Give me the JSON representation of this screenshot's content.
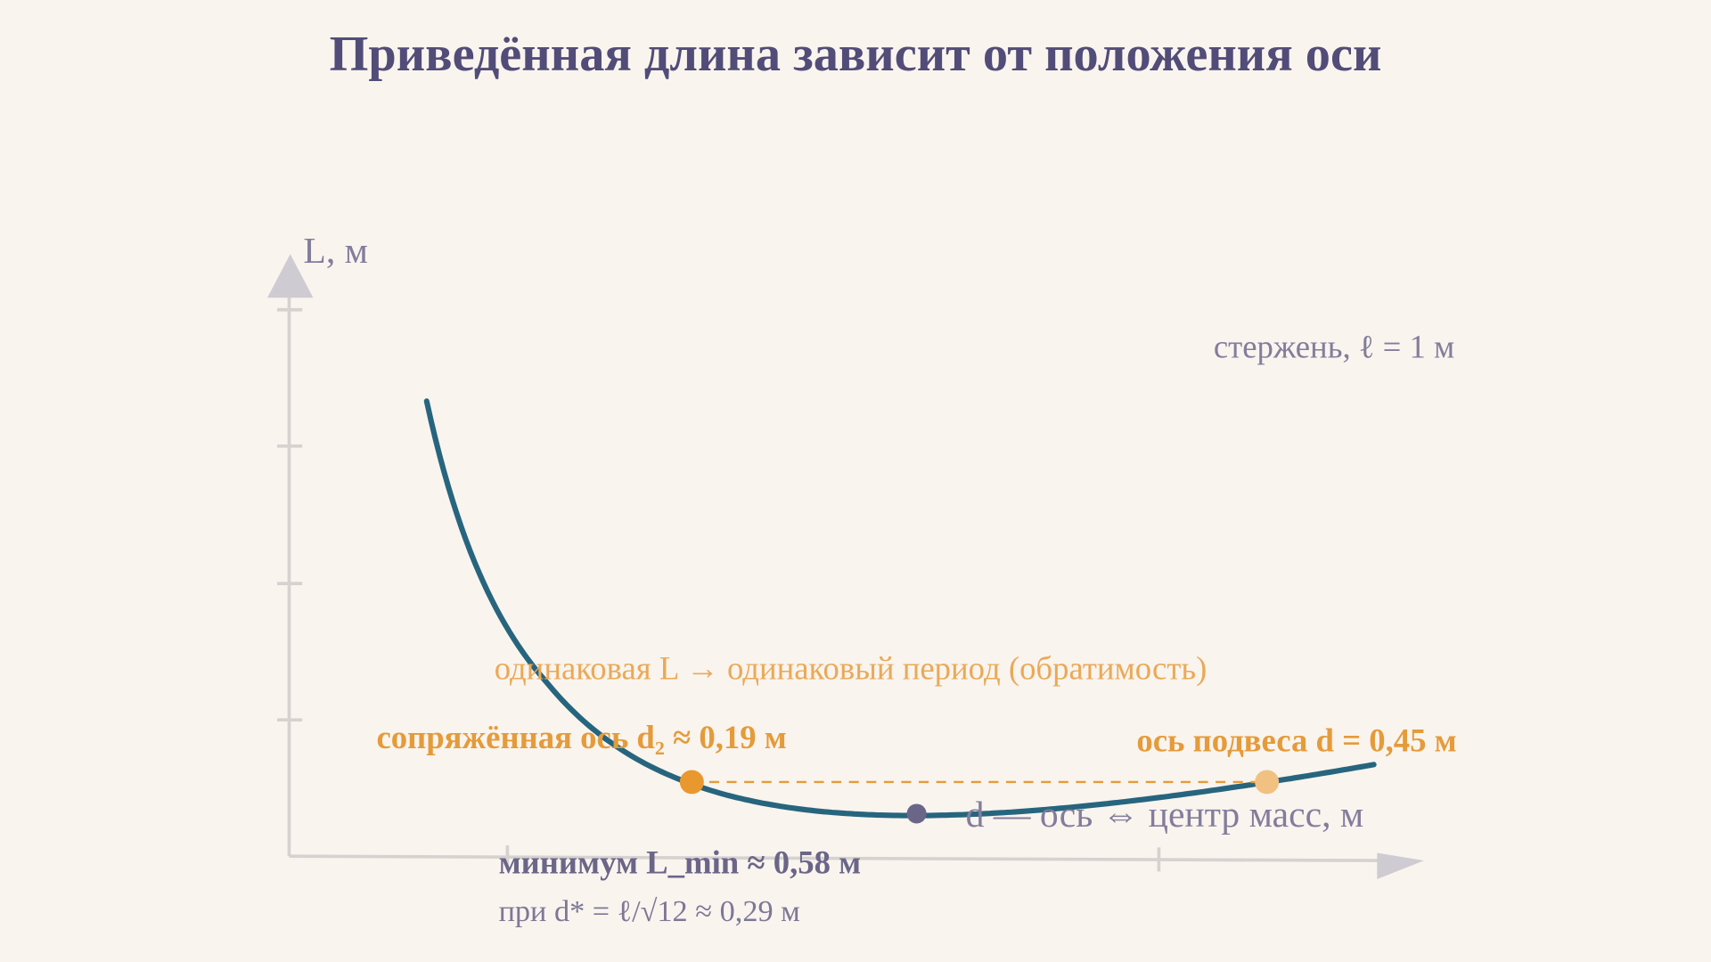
{
  "title": "Приведённая длина зависит от положения оси",
  "axes": {
    "y_label": "L, м",
    "x_label": "d — ось ⇔ центр масс, м"
  },
  "legend": "стержень,  ℓ = 1 м",
  "annotations": {
    "reversibility": "одинаковая L → одинаковый период (обратимость)",
    "conjugate_axis": "сопряжённая ось  d₂ ≈ 0,19 м",
    "pivot_axis": "ось подвеса  d = 0,45 м",
    "minimum": "минимум L_min ≈ 0,58 м",
    "minimum_at": "при d* = ℓ/√12 ≈ 0,29 м"
  }
}
